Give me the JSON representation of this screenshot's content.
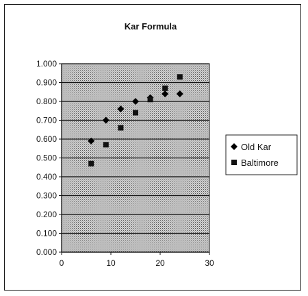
{
  "chart_data": {
    "type": "scatter",
    "title": "Kar Formula",
    "xlabel": "",
    "ylabel": "",
    "xlim": [
      0,
      30
    ],
    "ylim": [
      0,
      1
    ],
    "x_ticks": [
      "0",
      "10",
      "20",
      "30"
    ],
    "y_ticks": [
      "0.000",
      "0.100",
      "0.200",
      "0.300",
      "0.400",
      "0.500",
      "0.600",
      "0.700",
      "0.800",
      "0.900",
      "1.000"
    ],
    "grid": true,
    "legend_position": "right",
    "series": [
      {
        "name": "Old Kar",
        "marker": "diamond",
        "points": [
          {
            "x": 6,
            "y": 0.59
          },
          {
            "x": 9,
            "y": 0.7
          },
          {
            "x": 12,
            "y": 0.76
          },
          {
            "x": 15,
            "y": 0.8
          },
          {
            "x": 18,
            "y": 0.82
          },
          {
            "x": 21,
            "y": 0.84
          },
          {
            "x": 24,
            "y": 0.84
          }
        ]
      },
      {
        "name": "Baltimore",
        "marker": "square",
        "points": [
          {
            "x": 6,
            "y": 0.47
          },
          {
            "x": 9,
            "y": 0.57
          },
          {
            "x": 12,
            "y": 0.66
          },
          {
            "x": 15,
            "y": 0.74
          },
          {
            "x": 18,
            "y": 0.81
          },
          {
            "x": 21,
            "y": 0.87
          },
          {
            "x": 24,
            "y": 0.93
          }
        ]
      }
    ]
  }
}
